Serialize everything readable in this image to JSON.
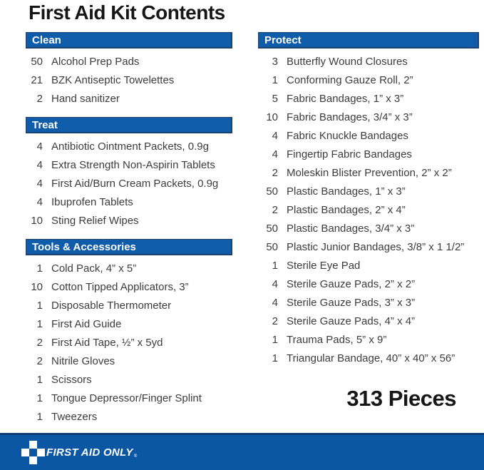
{
  "title": "First Aid Kit Contents",
  "total_label": "313 Pieces",
  "colors": {
    "header_blue": "#0e5caa",
    "header_border": "#1c4170",
    "footer_blue": "#0b57a3",
    "footer_line": "#0d3f74",
    "item_text": "#3c3c3c",
    "title_text": "#161616"
  },
  "columns": {
    "left": [
      {
        "header": "Clean",
        "items": [
          {
            "qty": "50",
            "name": "Alcohol Prep Pads"
          },
          {
            "qty": "21",
            "name": "BZK Antiseptic Towelettes"
          },
          {
            "qty": "2",
            "name": "Hand sanitizer"
          }
        ]
      },
      {
        "header": "Treat",
        "items": [
          {
            "qty": "4",
            "name": "Antibiotic Ointment Packets, 0.9g"
          },
          {
            "qty": "4",
            "name": "Extra Strength Non-Aspirin Tablets"
          },
          {
            "qty": "4",
            "name": "First Aid/Burn Cream Packets, 0.9g"
          },
          {
            "qty": "4",
            "name": "Ibuprofen Tablets"
          },
          {
            "qty": "10",
            "name": "Sting Relief Wipes"
          }
        ]
      },
      {
        "header": "Tools & Accessories",
        "items": [
          {
            "qty": "1",
            "name": "Cold Pack, 4” x 5”"
          },
          {
            "qty": "10",
            "name": "Cotton Tipped Applicators, 3”"
          },
          {
            "qty": "1",
            "name": "Disposable Thermometer"
          },
          {
            "qty": "1",
            "name": "First Aid Guide"
          },
          {
            "qty": "2",
            "name": "First Aid Tape, ½” x 5yd"
          },
          {
            "qty": "2",
            "name": "Nitrile Gloves"
          },
          {
            "qty": "1",
            "name": "Scissors"
          },
          {
            "qty": "1",
            "name": "Tongue Depressor/Finger Splint"
          },
          {
            "qty": "1",
            "name": "Tweezers"
          }
        ]
      }
    ],
    "right": [
      {
        "header": "Protect",
        "items": [
          {
            "qty": "3",
            "name": "Butterfly Wound Closures"
          },
          {
            "qty": "1",
            "name": "Conforming Gauze Roll, 2”"
          },
          {
            "qty": "5",
            "name": "Fabric Bandages, 1” x 3”"
          },
          {
            "qty": "10",
            "name": "Fabric Bandages, 3/4” x 3”"
          },
          {
            "qty": "4",
            "name": "Fabric Knuckle Bandages"
          },
          {
            "qty": "4",
            "name": "Fingertip Fabric Bandages"
          },
          {
            "qty": "2",
            "name": "Moleskin Blister Prevention, 2” x 2”"
          },
          {
            "qty": "50",
            "name": "Plastic Bandages, 1” x 3”"
          },
          {
            "qty": "2",
            "name": "Plastic Bandages, 2” x 4”"
          },
          {
            "qty": "50",
            "name": "Plastic Bandages, 3/4” x 3”"
          },
          {
            "qty": "50",
            "name": "Plastic Junior Bandages, 3/8” x 1 1/2”"
          },
          {
            "qty": "1",
            "name": "Sterile Eye Pad"
          },
          {
            "qty": "4",
            "name": "Sterile Gauze Pads, 2” x 2”"
          },
          {
            "qty": "4",
            "name": "Sterile Gauze Pads, 3” x 3”"
          },
          {
            "qty": "2",
            "name": "Sterile Gauze Pads, 4” x 4”"
          },
          {
            "qty": "1",
            "name": "Trauma Pads, 5” x 9”"
          },
          {
            "qty": "1",
            "name": "Triangular Bandage, 40” x 40” x 56”"
          }
        ]
      }
    ]
  },
  "footer": {
    "brand": "FIRST AID ONLY",
    "mark": "®",
    "cross_icon": "first-aid-cross-icon"
  }
}
